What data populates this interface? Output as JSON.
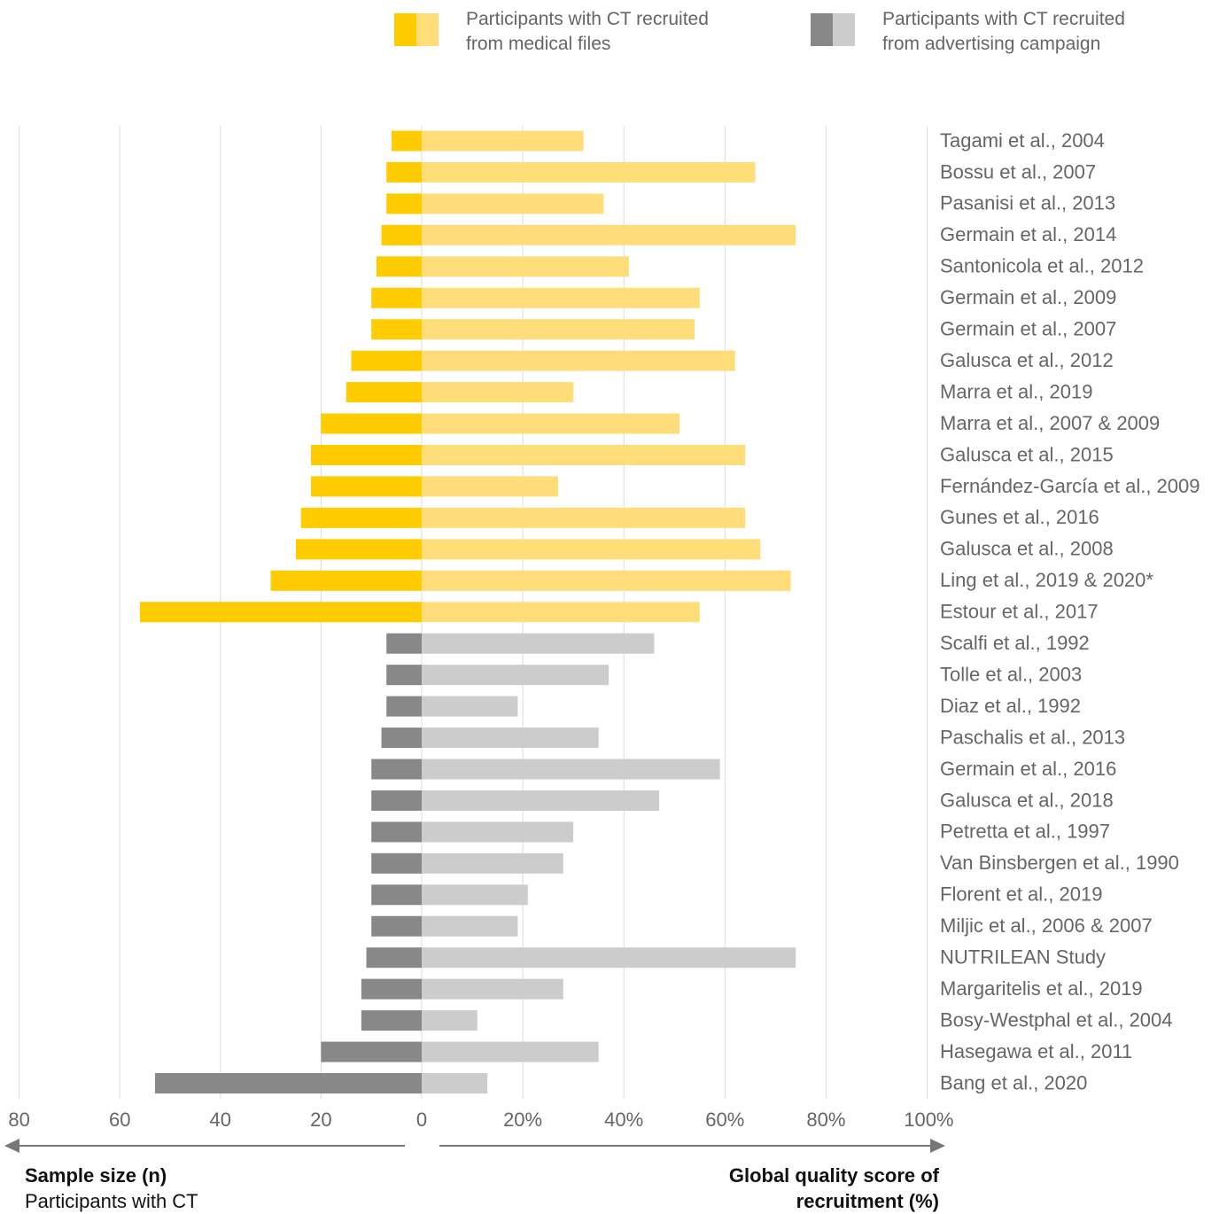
{
  "colors": {
    "medical_left": "#FFCC00",
    "medical_right": "#FFDE7A",
    "advert_left": "#888888",
    "advert_right": "#CCCCCC",
    "grid": "#DDDDDD",
    "arrow": "#777777"
  },
  "legend": {
    "medical_line1": "Participants with CT recruited",
    "medical_line2": "from medical files",
    "advert_line1": "Participants with CT recruited",
    "advert_line2": "from advertising campaign"
  },
  "footer": {
    "left_bold": "Sample size (n)",
    "left_plain": "Participants with CT",
    "right_line1": "Global quality score of",
    "right_line2": "recruitment (%)"
  },
  "chart_data": {
    "type": "bar",
    "orientation": "horizontal",
    "left_axis": {
      "label": "Sample size (n)",
      "range": [
        0,
        80
      ],
      "ticks": [
        "80",
        "60",
        "40",
        "20",
        "0"
      ]
    },
    "right_axis": {
      "label": "Global quality score of recruitment (%)",
      "range": [
        0,
        100
      ],
      "ticks": [
        "20%",
        "40%",
        "60%",
        "80%",
        "100%"
      ]
    },
    "grid": true,
    "legend_position": "top",
    "studies": [
      {
        "name": "Tagami et al., 2004",
        "group": "medical",
        "n": 6,
        "score": 32
      },
      {
        "name": "Bossu et al., 2007",
        "group": "medical",
        "n": 7,
        "score": 66
      },
      {
        "name": "Pasanisi et al., 2013",
        "group": "medical",
        "n": 7,
        "score": 36
      },
      {
        "name": "Germain et al., 2014",
        "group": "medical",
        "n": 8,
        "score": 74
      },
      {
        "name": "Santonicola et al., 2012",
        "group": "medical",
        "n": 9,
        "score": 41
      },
      {
        "name": "Germain et al., 2009",
        "group": "medical",
        "n": 10,
        "score": 55
      },
      {
        "name": "Germain et al., 2007",
        "group": "medical",
        "n": 10,
        "score": 54
      },
      {
        "name": "Galusca et al., 2012",
        "group": "medical",
        "n": 14,
        "score": 62
      },
      {
        "name": "Marra et al., 2019",
        "group": "medical",
        "n": 15,
        "score": 30
      },
      {
        "name": "Marra et al., 2007 & 2009",
        "group": "medical",
        "n": 20,
        "score": 51
      },
      {
        "name": "Galusca et al., 2015",
        "group": "medical",
        "n": 22,
        "score": 64
      },
      {
        "name": "Fernández-García et al., 2009",
        "group": "medical",
        "n": 22,
        "score": 27
      },
      {
        "name": "Gunes et al., 2016",
        "group": "medical",
        "n": 24,
        "score": 64
      },
      {
        "name": "Galusca et al., 2008",
        "group": "medical",
        "n": 25,
        "score": 67
      },
      {
        "name": "Ling et al., 2019 & 2020*",
        "group": "medical",
        "n": 30,
        "score": 73
      },
      {
        "name": "Estour et al., 2017",
        "group": "medical",
        "n": 56,
        "score": 55
      },
      {
        "name": "Scalfi et al., 1992",
        "group": "advertising",
        "n": 7,
        "score": 46
      },
      {
        "name": "Tolle et al., 2003",
        "group": "advertising",
        "n": 7,
        "score": 37
      },
      {
        "name": "Diaz et al., 1992",
        "group": "advertising",
        "n": 7,
        "score": 19
      },
      {
        "name": "Paschalis et al., 2013",
        "group": "advertising",
        "n": 8,
        "score": 35
      },
      {
        "name": "Germain et al., 2016",
        "group": "advertising",
        "n": 10,
        "score": 59
      },
      {
        "name": "Galusca et al., 2018",
        "group": "advertising",
        "n": 10,
        "score": 47
      },
      {
        "name": "Petretta et al., 1997",
        "group": "advertising",
        "n": 10,
        "score": 30
      },
      {
        "name": "Van Binsbergen et al., 1990",
        "group": "advertising",
        "n": 10,
        "score": 28
      },
      {
        "name": "Florent et al., 2019",
        "group": "advertising",
        "n": 10,
        "score": 21
      },
      {
        "name": "Miljic et al., 2006 & 2007",
        "group": "advertising",
        "n": 10,
        "score": 19
      },
      {
        "name": "NUTRILEAN Study",
        "group": "advertising",
        "n": 11,
        "score": 74
      },
      {
        "name": "Margaritelis et al., 2019",
        "group": "advertising",
        "n": 12,
        "score": 28
      },
      {
        "name": "Bosy-Westphal et al., 2004",
        "group": "advertising",
        "n": 12,
        "score": 11
      },
      {
        "name": "Hasegawa et al., 2011",
        "group": "advertising",
        "n": 20,
        "score": 35
      },
      {
        "name": "Bang et al., 2020",
        "group": "advertising",
        "n": 53,
        "score": 13
      }
    ]
  }
}
